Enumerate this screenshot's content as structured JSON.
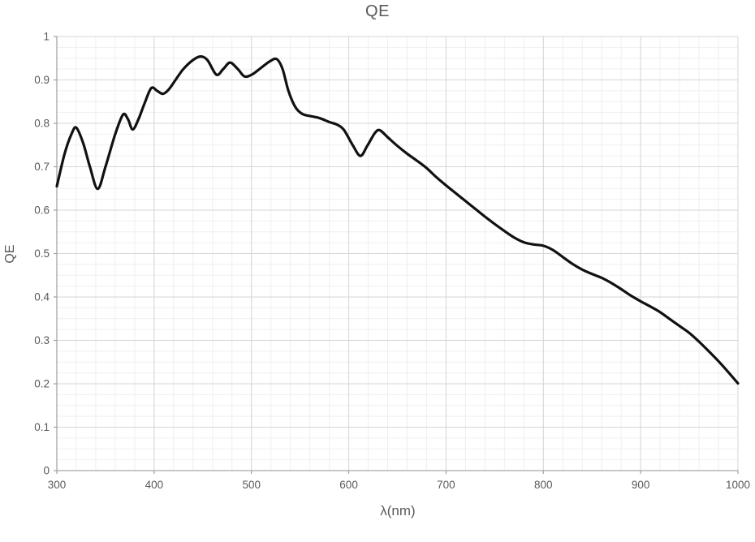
{
  "colors": {
    "background": "#ffffff",
    "curve": "#111111",
    "axis_line": "#a6a6a6",
    "grid_major": "#d6d6d6",
    "grid_minor": "#efefef",
    "text": "#595959"
  },
  "chart_data": {
    "type": "line",
    "title": "QE",
    "xlabel": "λ(nm)",
    "ylabel": "QE",
    "xlim": [
      300,
      1000
    ],
    "ylim": [
      0,
      1
    ],
    "x_major_ticks": [
      300,
      400,
      500,
      600,
      700,
      800,
      900,
      1000
    ],
    "x_tick_labels": [
      "300",
      "400",
      "500",
      "600",
      "700",
      "800",
      "900",
      "1000"
    ],
    "x_minor_step": 20,
    "y_major_ticks": [
      0,
      0.1,
      0.2,
      0.3,
      0.4,
      0.5,
      0.6,
      0.7,
      0.8,
      0.9,
      1
    ],
    "y_tick_labels": [
      "0",
      "0.1",
      "0.2",
      "0.3",
      "0.4",
      "0.5",
      "0.6",
      "0.7",
      "0.8",
      "0.9",
      "1"
    ],
    "y_minor_step": 0.025,
    "grid": "major+minor",
    "legend_position": "none",
    "series": [
      {
        "name": "QE",
        "x": [
          300,
          308,
          315,
          320,
          327,
          334,
          342,
          350,
          360,
          368,
          373,
          378,
          384,
          390,
          397,
          403,
          409,
          415,
          422,
          430,
          440,
          448,
          455,
          464,
          471,
          478,
          486,
          493,
          501,
          510,
          519,
          526,
          532,
          538,
          545,
          552,
          560,
          570,
          580,
          588,
          595,
          604,
          612,
          619,
          627,
          632,
          640,
          650,
          660,
          670,
          680,
          690,
          700,
          710,
          720,
          730,
          740,
          750,
          760,
          770,
          780,
          790,
          800,
          810,
          820,
          830,
          840,
          850,
          860,
          870,
          880,
          890,
          900,
          910,
          920,
          930,
          940,
          950,
          960,
          970,
          980,
          990,
          1000
        ],
        "y": [
          0.655,
          0.73,
          0.775,
          0.79,
          0.755,
          0.7,
          0.649,
          0.7,
          0.775,
          0.82,
          0.81,
          0.786,
          0.81,
          0.845,
          0.881,
          0.875,
          0.868,
          0.878,
          0.9,
          0.925,
          0.946,
          0.954,
          0.945,
          0.912,
          0.925,
          0.94,
          0.925,
          0.908,
          0.913,
          0.928,
          0.943,
          0.948,
          0.925,
          0.875,
          0.838,
          0.822,
          0.817,
          0.812,
          0.803,
          0.797,
          0.785,
          0.75,
          0.725,
          0.748,
          0.778,
          0.784,
          0.768,
          0.748,
          0.73,
          0.714,
          0.697,
          0.676,
          0.657,
          0.639,
          0.621,
          0.603,
          0.585,
          0.568,
          0.552,
          0.537,
          0.526,
          0.521,
          0.518,
          0.508,
          0.492,
          0.476,
          0.463,
          0.453,
          0.444,
          0.432,
          0.418,
          0.403,
          0.39,
          0.378,
          0.365,
          0.349,
          0.333,
          0.317,
          0.297,
          0.275,
          0.252,
          0.227,
          0.201
        ]
      }
    ]
  }
}
